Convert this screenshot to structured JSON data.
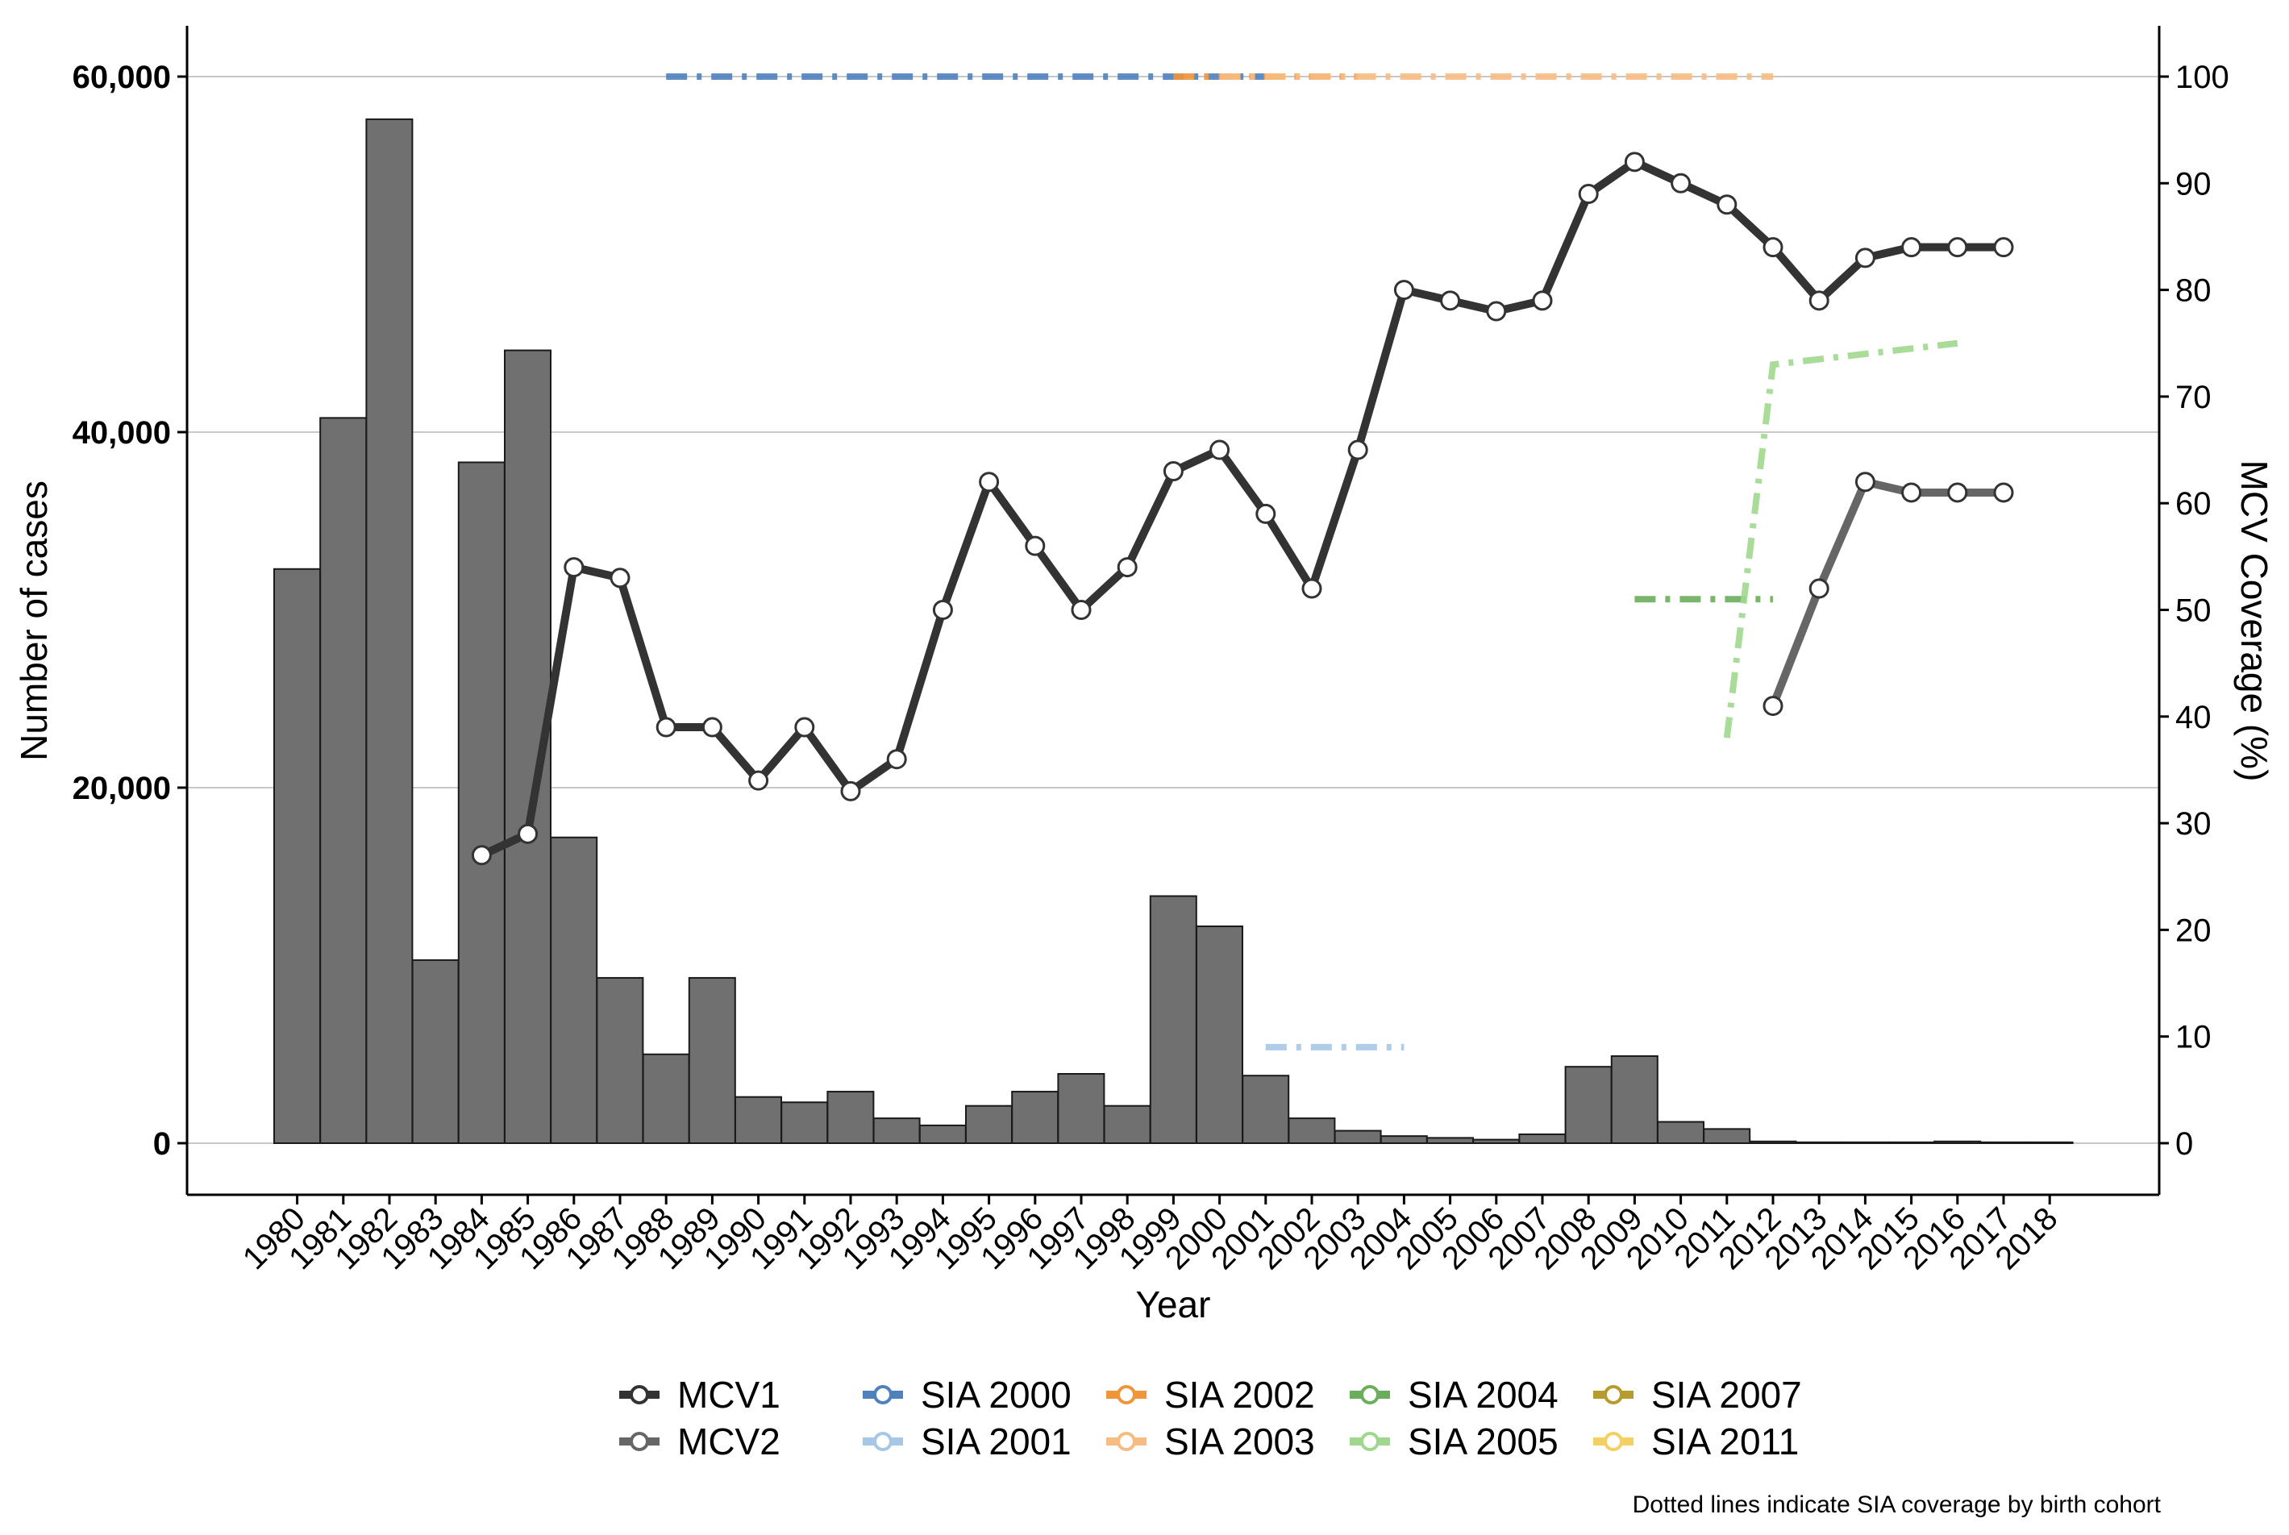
{
  "chart_data": {
    "type": "bar",
    "categories": [
      "1980",
      "1981",
      "1982",
      "1983",
      "1984",
      "1985",
      "1986",
      "1987",
      "1988",
      "1989",
      "1990",
      "1991",
      "1992",
      "1993",
      "1994",
      "1995",
      "1996",
      "1997",
      "1998",
      "1999",
      "2000",
      "2001",
      "2002",
      "2003",
      "2004",
      "2005",
      "2006",
      "2007",
      "2008",
      "2009",
      "2010",
      "2011",
      "2012",
      "2013",
      "2014",
      "2015",
      "2016",
      "2017",
      "2018"
    ],
    "xlabel": "Year",
    "ylabel": "Number of cases",
    "y2label": "MCV Coverage (%)",
    "ylim": [
      0,
      60000
    ],
    "y2lim": [
      0,
      100
    ],
    "yticks": [
      "0",
      "20,000",
      "40,000",
      "60,000"
    ],
    "yticks_values": [
      0,
      20000,
      40000,
      60000
    ],
    "y2ticks": [
      "0",
      "10",
      "20",
      "30",
      "40",
      "50",
      "60",
      "70",
      "80",
      "90",
      "100"
    ],
    "grid": "horizontal major gridlines at 0, 20,000, 40,000, 60,000",
    "legend_position": "bottom",
    "bars": {
      "name": "Number of cases",
      "color": "#707070",
      "values": [
        32300,
        40800,
        57600,
        10300,
        38300,
        44600,
        17200,
        9300,
        5000,
        9300,
        2600,
        2300,
        2900,
        1400,
        1000,
        2100,
        2900,
        3900,
        2100,
        13900,
        12200,
        3800,
        1400,
        700,
        400,
        300,
        200,
        500,
        4300,
        4900,
        1200,
        800,
        100,
        50,
        50,
        50,
        100,
        50,
        50
      ]
    },
    "series": [
      {
        "name": "MCV1",
        "axis": "right",
        "color": "#333333",
        "x": [
          "1984",
          "1985",
          "1986",
          "1987",
          "1988",
          "1989",
          "1990",
          "1991",
          "1992",
          "1993",
          "1994",
          "1995",
          "1996",
          "1997",
          "1998",
          "1999",
          "2000",
          "2001",
          "2002",
          "2003",
          "2004",
          "2005",
          "2006",
          "2007",
          "2008",
          "2009",
          "2010",
          "2011",
          "2012",
          "2013",
          "2014",
          "2015",
          "2016",
          "2017"
        ],
        "values": [
          27,
          29,
          54,
          53,
          39,
          39,
          34,
          39,
          33,
          36,
          50,
          62,
          56,
          50,
          54,
          63,
          65,
          59,
          52,
          65,
          80,
          79,
          78,
          79,
          89,
          92,
          90,
          88,
          84,
          79,
          83,
          84,
          84,
          84
        ]
      },
      {
        "name": "MCV2",
        "axis": "right",
        "color": "#666666",
        "x": [
          "2012",
          "2013",
          "2014",
          "2015",
          "2016",
          "2017"
        ],
        "values": [
          41,
          52,
          62,
          61,
          61,
          61
        ]
      },
      {
        "name": "SIA 2000",
        "axis": "right",
        "color": "#4f81bd",
        "style": "dashed",
        "segments": [
          {
            "x": [
              "1988",
              "2001"
            ],
            "values": [
              100,
              100
            ]
          }
        ]
      },
      {
        "name": "SIA 2001",
        "axis": "right",
        "color": "#a6c8e6",
        "style": "dashed",
        "segments": [
          {
            "x": [
              "2001",
              "2004"
            ],
            "values": [
              9,
              9
            ]
          }
        ]
      },
      {
        "name": "SIA 2002",
        "axis": "right",
        "color": "#f0953a",
        "style": "dashed",
        "segments": [
          {
            "x": [
              "1999",
              "2003"
            ],
            "values": [
              100,
              100
            ]
          }
        ]
      },
      {
        "name": "SIA 2003",
        "axis": "right",
        "color": "#f7bc82",
        "style": "dashed",
        "segments": [
          {
            "x": [
              "2000",
              "2012"
            ],
            "values": [
              100,
              100
            ]
          }
        ]
      },
      {
        "name": "SIA 2004",
        "axis": "right",
        "color": "#6aae5c",
        "style": "dashed",
        "segments": [
          {
            "x": [
              "2009",
              "2012"
            ],
            "values": [
              51,
              51
            ]
          }
        ]
      },
      {
        "name": "SIA 2005",
        "axis": "right",
        "color": "#9fd88d",
        "style": "dashed",
        "segments": [
          {
            "x": [
              "2011",
              "2012",
              "2016"
            ],
            "values": [
              38,
              73,
              75
            ]
          }
        ]
      },
      {
        "name": "SIA 2007",
        "axis": "right",
        "color": "#b89b2e",
        "style": "dashed",
        "segments": []
      },
      {
        "name": "SIA 2011",
        "axis": "right",
        "color": "#f4cf63",
        "style": "dashed",
        "segments": []
      }
    ],
    "legend": [
      {
        "label": "MCV1",
        "color": "#333333"
      },
      {
        "label": "SIA 2000",
        "color": "#4f81bd"
      },
      {
        "label": "SIA 2002",
        "color": "#f0953a"
      },
      {
        "label": "SIA 2004",
        "color": "#6aae5c"
      },
      {
        "label": "SIA 2007",
        "color": "#b89b2e"
      },
      {
        "label": "MCV2",
        "color": "#666666"
      },
      {
        "label": "SIA 2001",
        "color": "#a6c8e6"
      },
      {
        "label": "SIA 2003",
        "color": "#f7bc82"
      },
      {
        "label": "SIA 2005",
        "color": "#9fd88d"
      },
      {
        "label": "SIA 2011",
        "color": "#f4cf63"
      }
    ],
    "note": "Dotted lines indicate SIA coverage by birth cohort"
  }
}
